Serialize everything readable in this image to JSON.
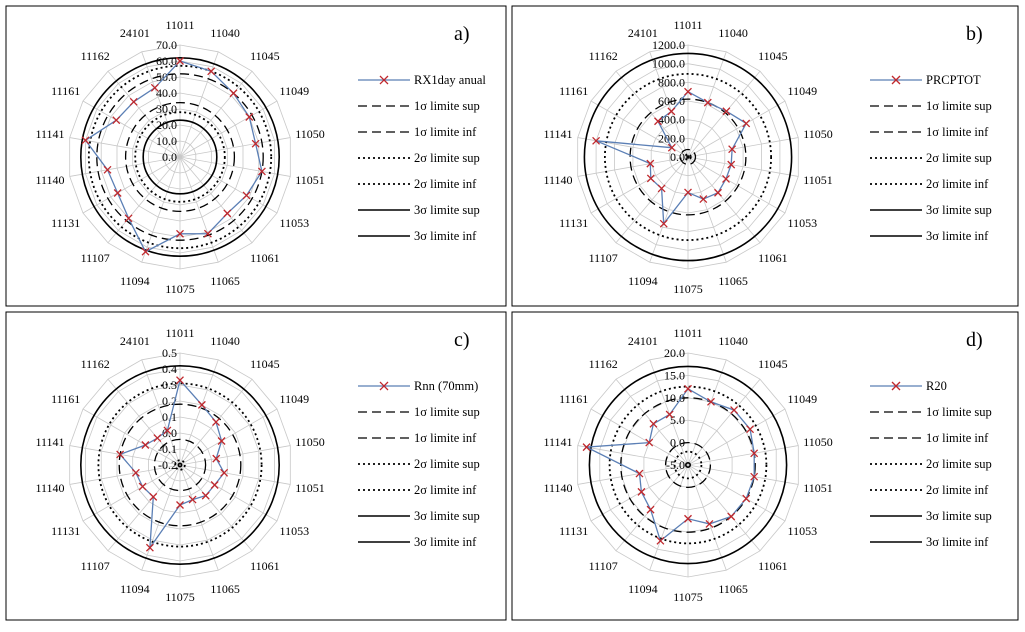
{
  "stations": [
    "11011",
    "11040",
    "11045",
    "11049",
    "11050",
    "11051",
    "11053",
    "11061",
    "11065",
    "11075",
    "11094",
    "11107",
    "11131",
    "11140",
    "11141",
    "11161",
    "11162",
    "24101"
  ],
  "legend_labels": [
    "1σ limite sup",
    "1σ limite inf",
    "2σ limite sup",
    "2σ limite inf",
    "3σ limite sup",
    "3σ limite inf"
  ],
  "colors": {
    "series_line": "#5b7fb5",
    "series_marker": "#c0282d",
    "grid": "#c8c8c8",
    "frame": "#000000"
  },
  "chart_data": [
    {
      "panel": "a)",
      "type": "radar",
      "series_name": "RX1day anual",
      "ticks": [
        "0.0",
        "10.0",
        "20.0",
        "30.0",
        "40.0",
        "50.0",
        "60.0",
        "70.0"
      ],
      "range": [
        0,
        70
      ],
      "values": [
        60,
        57,
        52,
        50,
        48,
        52,
        48,
        46,
        51,
        48,
        63,
        50,
        45,
        46,
        60,
        46,
        45,
        46
      ],
      "limits": {
        "s1_sup": 52,
        "s1_inf": 34,
        "s2_sup": 57,
        "s2_inf": 28,
        "s3_sup": 62,
        "s3_inf": 23
      }
    },
    {
      "panel": "b)",
      "type": "radar",
      "series_name": "PRCPTOT",
      "ticks": [
        "0.0",
        "200.0",
        "400.0",
        "600.0",
        "800.0",
        "1000.0",
        "1200.0"
      ],
      "range": [
        0,
        1200
      ],
      "values": [
        700,
        620,
        640,
        720,
        480,
        470,
        470,
        500,
        480,
        380,
        760,
        440,
        460,
        410,
        1000,
        200,
        500,
        520
      ],
      "limits": {
        "s1_sup": 620,
        "s1_inf": 80,
        "s2_sup": 890,
        "s2_inf": 30,
        "s3_sup": 1110,
        "s3_inf": 10
      }
    },
    {
      "panel": "c)",
      "type": "radar",
      "series_name": "Rnn (70mm)",
      "ticks": [
        "-0.2",
        "-0.1",
        "0.0",
        "0.1",
        "0.2",
        "0.3",
        "0.4",
        "0.5"
      ],
      "range": [
        -0.2,
        0.5
      ],
      "values": [
        0.33,
        0.2,
        0.15,
        0.1,
        0.03,
        0.08,
        0.05,
        0.05,
        0.03,
        0.05,
        0.35,
        0.06,
        0.07,
        0.08,
        0.18,
        0.05,
        0.02,
        0.03
      ],
      "limits": {
        "s1_sup": 0.18,
        "s1_inf": -0.04,
        "s2_sup": 0.31,
        "s2_inf": -0.17,
        "s3_sup": 0.42,
        "s3_inf": -0.19
      }
    },
    {
      "panel": "d)",
      "type": "radar",
      "series_name": "R20",
      "ticks": [
        "-5.0",
        "0.0",
        "5.0",
        "10.0",
        "15.0",
        "20.0"
      ],
      "range": [
        -5,
        20
      ],
      "values": [
        12,
        10,
        11,
        11,
        10,
        10,
        10,
        10,
        9,
        7,
        13,
        8,
        7,
        6,
        18,
        5,
        7,
        7
      ],
      "limits": {
        "s1_sup": 10,
        "s1_inf": 0,
        "s2_sup": 12.5,
        "s2_inf": -2,
        "s3_sup": 17,
        "s3_inf": -4.5
      }
    }
  ]
}
